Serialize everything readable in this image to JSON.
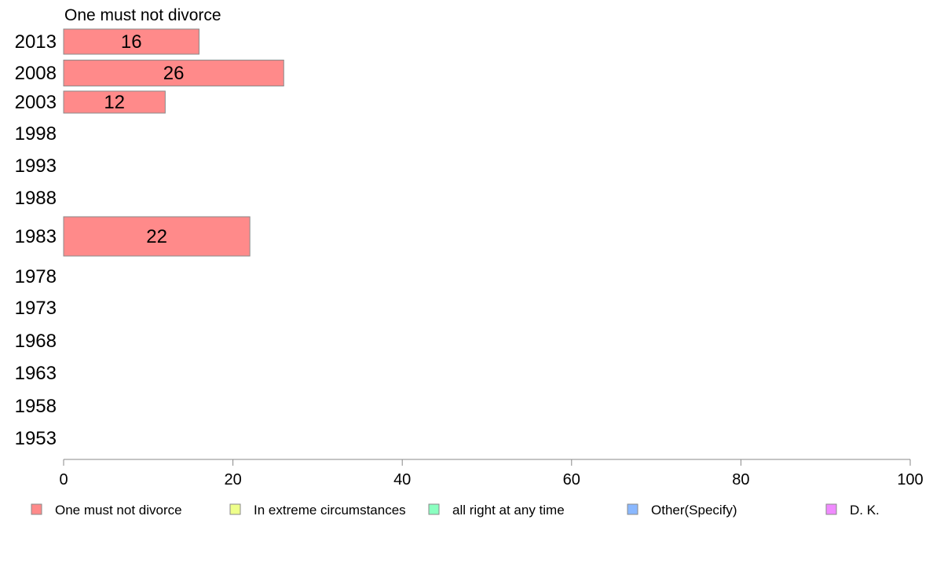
{
  "chart_data": {
    "type": "bar",
    "orientation": "horizontal",
    "series_title": "One must not divorce",
    "categories": [
      "2013",
      "2008",
      "2003",
      "1998",
      "1993",
      "1988",
      "1983",
      "1978",
      "1973",
      "1968",
      "1963",
      "1958",
      "1953"
    ],
    "series": [
      {
        "name": "One must not divorce",
        "color": "#ff8a8a",
        "values": [
          16,
          26,
          12,
          null,
          null,
          null,
          22,
          null,
          null,
          null,
          null,
          null,
          null
        ]
      }
    ],
    "xlim": [
      0,
      100
    ],
    "xticks": [
      0,
      20,
      40,
      60,
      80,
      100
    ],
    "grid": false,
    "legend_position": "bottom",
    "legend": [
      {
        "label": "One must not divorce",
        "color": "#ff8a8a"
      },
      {
        "label": "In extreme circumstances",
        "color": "#eeff8a"
      },
      {
        "label": "all right at any time",
        "color": "#8affc0"
      },
      {
        "label": "Other(Specify)",
        "color": "#8ab8ff"
      },
      {
        "label": "D. K.",
        "color": "#f08aff"
      }
    ]
  }
}
